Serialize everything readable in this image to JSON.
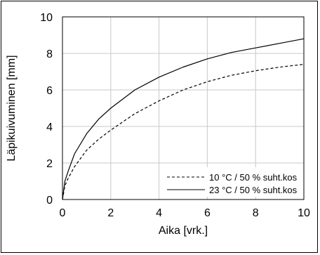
{
  "chart_data": {
    "type": "line",
    "xlabel": "Aika [vrk.]",
    "ylabel": "Läpikuivuminen [mm]",
    "xlim": [
      0,
      10
    ],
    "ylim": [
      0,
      10
    ],
    "x_ticks": [
      "0",
      "2",
      "4",
      "6",
      "8",
      "10"
    ],
    "y_ticks": [
      "0",
      "2",
      "4",
      "6",
      "8",
      "10"
    ],
    "grid": true,
    "legend_position": "bottom-right",
    "series": [
      {
        "name": "10 °C / 50 % suht.kos",
        "style": "dashed",
        "x": [
          0,
          0.1,
          0.25,
          0.5,
          1,
          1.5,
          2,
          3,
          4,
          5,
          6,
          7,
          8,
          9,
          10
        ],
        "y": [
          0,
          0.75,
          1.2,
          1.8,
          2.7,
          3.3,
          3.8,
          4.7,
          5.4,
          6.0,
          6.45,
          6.8,
          7.05,
          7.25,
          7.4
        ]
      },
      {
        "name": "23 °C / 50 % suht.kos",
        "style": "solid",
        "x": [
          0,
          0.1,
          0.25,
          0.5,
          1,
          1.5,
          2,
          3,
          4,
          5,
          6,
          7,
          8,
          9,
          10
        ],
        "y": [
          0,
          1.0,
          1.6,
          2.5,
          3.6,
          4.4,
          5.0,
          6.0,
          6.7,
          7.25,
          7.7,
          8.05,
          8.3,
          8.55,
          8.8
        ]
      }
    ]
  }
}
